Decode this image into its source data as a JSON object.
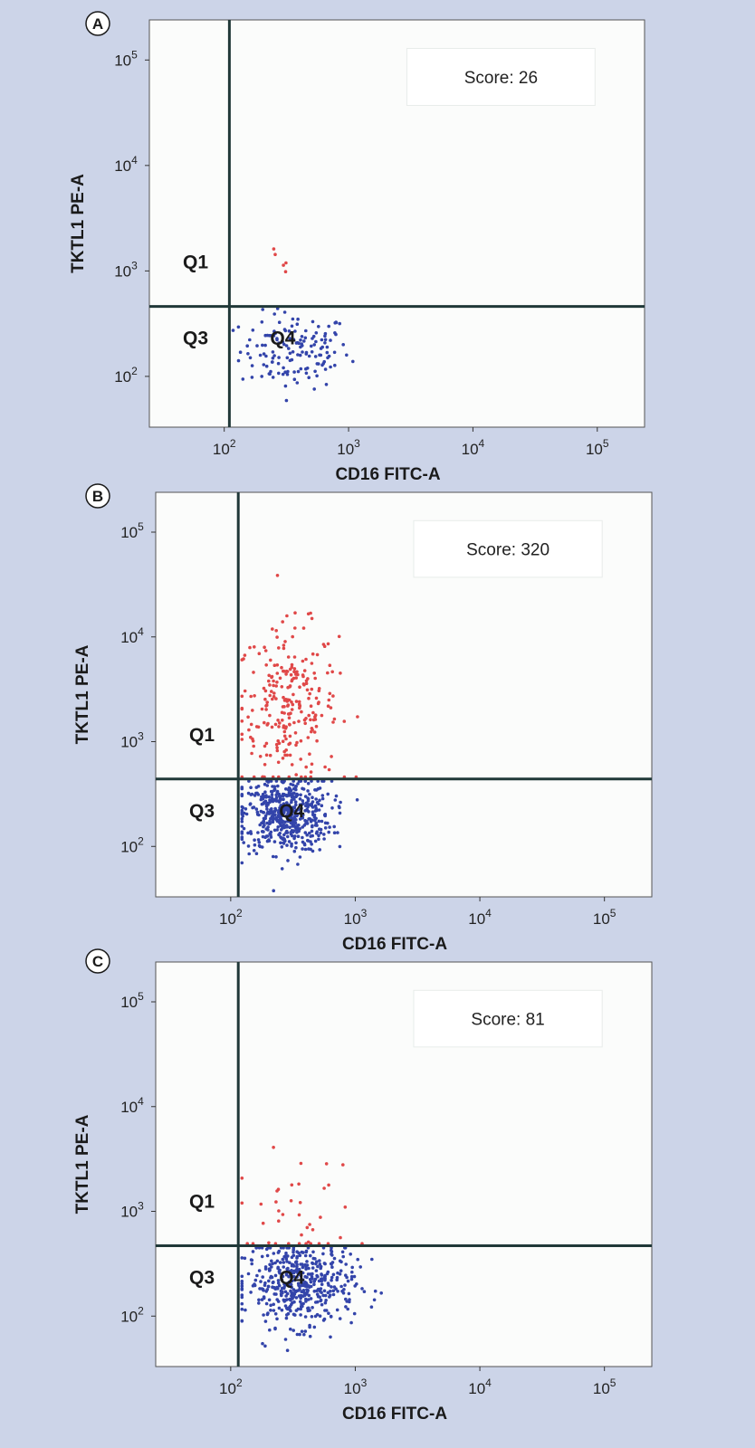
{
  "chart_data": [
    {
      "type": "scatter",
      "panel_label": "A",
      "score_text": "Score: 26",
      "xlabel": "CD16 FITC-A",
      "ylabel": "TKTL1 PE-A",
      "x_scale": "log",
      "y_scale": "log",
      "xlim": [
        25,
        240000.0
      ],
      "ylim": [
        33,
        240000.0
      ],
      "x_ticks": [
        100,
        1000,
        10000,
        100000
      ],
      "x_tick_labels": [
        {
          "base": "10",
          "exp": "2"
        },
        {
          "base": "10",
          "exp": "3"
        },
        {
          "base": "10",
          "exp": "4"
        },
        {
          "base": "10",
          "exp": "5"
        }
      ],
      "y_ticks": [
        100,
        1000,
        10000,
        100000
      ],
      "y_tick_labels": [
        {
          "base": "10",
          "exp": "2"
        },
        {
          "base": "10",
          "exp": "3"
        },
        {
          "base": "10",
          "exp": "4"
        },
        {
          "base": "10",
          "exp": "5"
        }
      ],
      "gate_x": 110,
      "gate_y": 460,
      "quadrants": {
        "Q1": "Q1",
        "Q3": "Q3",
        "Q4": "Q4"
      },
      "colors": {
        "upper": "#e04848",
        "lower": "#3344aa",
        "gate": "#203838"
      },
      "populations": [
        {
          "name": "upper",
          "color": "#e04848",
          "n": 5,
          "center": [
            280,
            1100
          ],
          "spread": [
            0.12,
            0.12
          ]
        },
        {
          "name": "lower",
          "color": "#3344aa",
          "n": 150,
          "center": [
            370,
            175
          ],
          "spread": [
            0.22,
            0.18
          ]
        }
      ]
    },
    {
      "type": "scatter",
      "panel_label": "B",
      "score_text": "Score: 320",
      "xlabel": "CD16 FITC-A",
      "ylabel": "TKTL1 PE-A",
      "x_scale": "log",
      "y_scale": "log",
      "xlim": [
        25,
        240000.0
      ],
      "ylim": [
        33,
        240000.0
      ],
      "x_ticks": [
        100,
        1000,
        10000,
        100000
      ],
      "x_tick_labels": [
        {
          "base": "10",
          "exp": "2"
        },
        {
          "base": "10",
          "exp": "3"
        },
        {
          "base": "10",
          "exp": "4"
        },
        {
          "base": "10",
          "exp": "5"
        }
      ],
      "y_ticks": [
        100,
        1000,
        10000,
        100000
      ],
      "y_tick_labels": [
        {
          "base": "10",
          "exp": "2"
        },
        {
          "base": "10",
          "exp": "3"
        },
        {
          "base": "10",
          "exp": "4"
        },
        {
          "base": "10",
          "exp": "5"
        }
      ],
      "gate_x": 115,
      "gate_y": 440,
      "quadrants": {
        "Q1": "Q1",
        "Q3": "Q3",
        "Q4": "Q4"
      },
      "colors": {
        "upper": "#e04848",
        "lower": "#3344aa",
        "gate": "#203838"
      },
      "populations": [
        {
          "name": "upper",
          "color": "#e04848",
          "n": 260,
          "center": [
            290,
            2200
          ],
          "spread": [
            0.2,
            0.38
          ]
        },
        {
          "name": "lower",
          "color": "#3344aa",
          "n": 520,
          "center": [
            280,
            200
          ],
          "spread": [
            0.18,
            0.18
          ]
        }
      ]
    },
    {
      "type": "scatter",
      "panel_label": "C",
      "score_text": "Score: 81",
      "xlabel": "CD16 FITC-A",
      "ylabel": "TKTL1 PE-A",
      "x_scale": "log",
      "y_scale": "log",
      "xlim": [
        25,
        240000.0
      ],
      "ylim": [
        33,
        240000.0
      ],
      "x_ticks": [
        100,
        1000,
        10000,
        100000
      ],
      "x_tick_labels": [
        {
          "base": "10",
          "exp": "2"
        },
        {
          "base": "10",
          "exp": "3"
        },
        {
          "base": "10",
          "exp": "4"
        },
        {
          "base": "10",
          "exp": "5"
        }
      ],
      "y_ticks": [
        100,
        1000,
        10000,
        100000
      ],
      "y_tick_labels": [
        {
          "base": "10",
          "exp": "2"
        },
        {
          "base": "10",
          "exp": "3"
        },
        {
          "base": "10",
          "exp": "4"
        },
        {
          "base": "10",
          "exp": "5"
        }
      ],
      "gate_x": 115,
      "gate_y": 470,
      "quadrants": {
        "Q1": "Q1",
        "Q3": "Q3",
        "Q4": "Q4"
      },
      "colors": {
        "upper": "#e04848",
        "lower": "#3344aa",
        "gate": "#203838"
      },
      "populations": [
        {
          "name": "upper",
          "color": "#e04848",
          "n": 40,
          "center": [
            330,
            900
          ],
          "spread": [
            0.25,
            0.3
          ]
        },
        {
          "name": "lower",
          "color": "#3344aa",
          "n": 480,
          "center": [
            360,
            200
          ],
          "spread": [
            0.22,
            0.2
          ]
        }
      ]
    }
  ]
}
